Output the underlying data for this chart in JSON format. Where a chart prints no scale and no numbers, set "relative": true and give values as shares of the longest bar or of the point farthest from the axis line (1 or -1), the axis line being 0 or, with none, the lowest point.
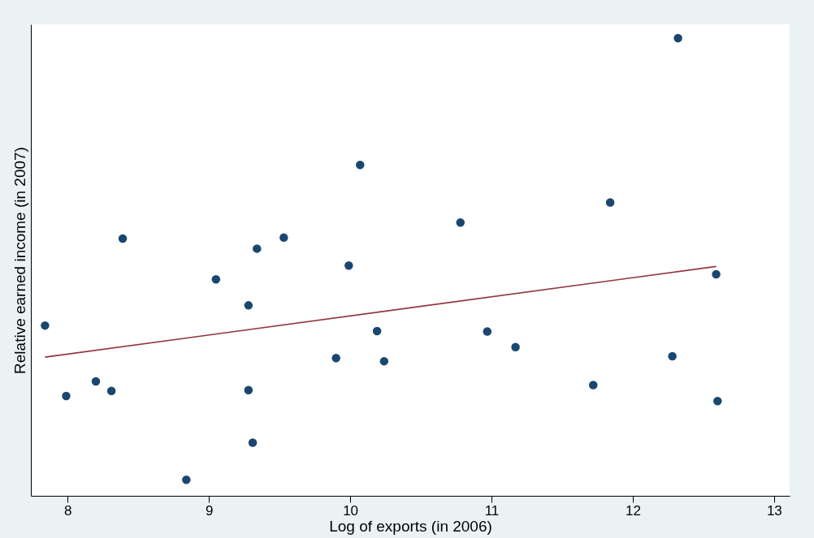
{
  "chart_data": {
    "type": "scatter",
    "xlabel": "Log of exports (in 2006)",
    "ylabel": "Relative earned income (in 2007)",
    "relative": true,
    "xlim": [
      7.74,
      13.11
    ],
    "xticks": [
      8,
      9,
      10,
      11,
      12,
      13
    ],
    "grid": false,
    "series": [
      {
        "color": "#1a476f",
        "marker": "circle",
        "x": [
          7.84,
          7.99,
          8.2,
          8.31,
          8.39,
          8.84,
          9.05,
          9.28,
          9.28,
          9.31,
          9.34,
          9.53,
          9.9,
          9.99,
          10.07,
          10.19,
          10.24,
          10.78,
          10.97,
          11.17,
          11.72,
          11.84,
          12.28,
          12.32,
          12.59,
          12.6
        ],
        "values": [
          0.372,
          0.218,
          0.25,
          0.229,
          0.562,
          0.035,
          0.473,
          0.416,
          0.231,
          0.116,
          0.54,
          0.564,
          0.301,
          0.503,
          0.723,
          0.36,
          0.294,
          0.597,
          0.359,
          0.325,
          0.242,
          0.641,
          0.305,
          1.0,
          0.484,
          0.207
        ]
      },
      {
        "type": "line",
        "color": "#90353b",
        "x": [
          7.84,
          12.59
        ],
        "values": [
          0.303,
          0.501
        ]
      }
    ]
  }
}
